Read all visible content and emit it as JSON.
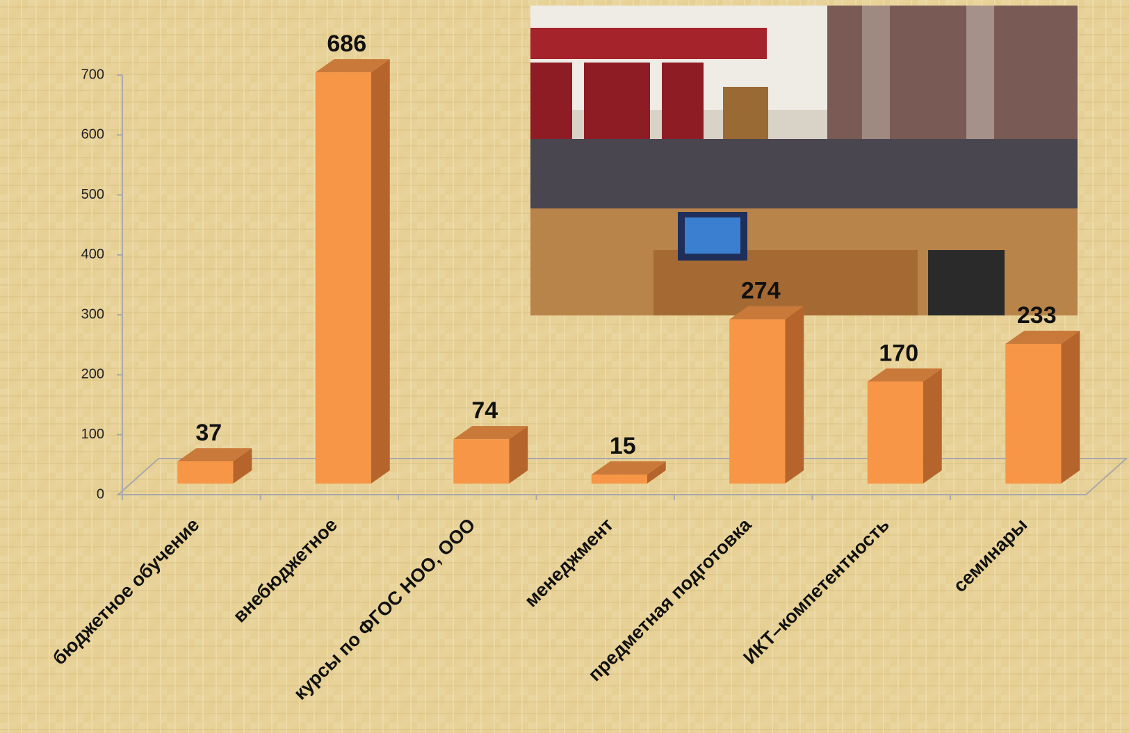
{
  "chart_data": {
    "type": "bar",
    "categories": [
      "бюджетное обучение",
      "внебюджетное",
      "курсы по ФГОС НОО, ООО",
      "менеджмент",
      "предметная подготовка",
      "ИКТ–компетентность",
      "семинары"
    ],
    "values": [
      37,
      686,
      74,
      15,
      274,
      170,
      233
    ],
    "color": "#f79646",
    "ylim": [
      0,
      700
    ],
    "yticks": [
      0,
      100,
      200,
      300,
      400,
      500,
      600,
      700
    ],
    "grid": false
  }
}
